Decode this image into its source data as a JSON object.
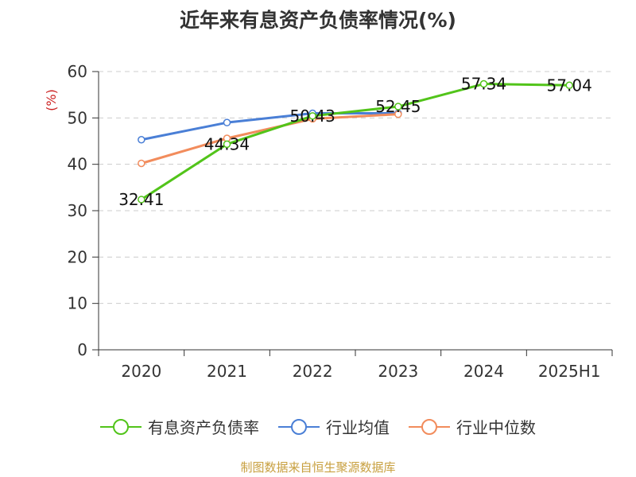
{
  "chart_data": {
    "type": "line",
    "title": "近年来有息资产负债率情况(%)",
    "ylabel": "(%)",
    "xlabel": "",
    "categories": [
      "2020",
      "2021",
      "2022",
      "2023",
      "2024",
      "2025H1"
    ],
    "ylim": [
      0,
      60
    ],
    "yticks": [
      0,
      10,
      20,
      30,
      40,
      50,
      60
    ],
    "grid": true,
    "legend_position": "bottom",
    "series": [
      {
        "name": "有息资产负债率",
        "color": "#52c41a",
        "values": [
          32.41,
          44.34,
          50.43,
          52.45,
          57.34,
          57.04
        ],
        "labels": [
          "32.41",
          "44.34",
          "50.43",
          "52.45",
          "57.34",
          "57.04"
        ]
      },
      {
        "name": "行业均值",
        "color": "#4a7fd6",
        "values": [
          45.3,
          49.0,
          51.0,
          51.0,
          null,
          null
        ]
      },
      {
        "name": "行业中位数",
        "color": "#f28c5c",
        "values": [
          40.2,
          45.6,
          49.8,
          50.8,
          null,
          null
        ]
      }
    ]
  },
  "colors": {
    "ylabel": "#cc2222",
    "source": "#c8a040",
    "axis": "#333333",
    "grid": "#cccccc"
  },
  "source_note": "制图数据来自恒生聚源数据库"
}
